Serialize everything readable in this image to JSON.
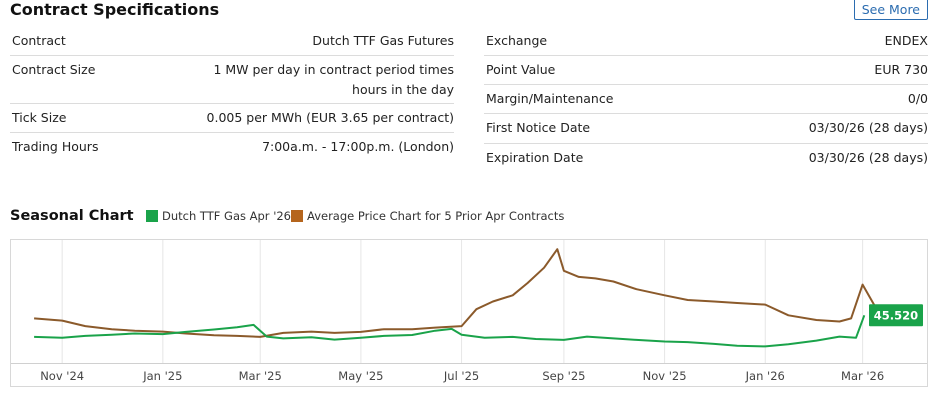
{
  "header": {
    "title": "Contract Specifications",
    "see_more_label": "See More"
  },
  "specs_left": [
    {
      "label": "Contract",
      "value": "Dutch TTF Gas Futures"
    },
    {
      "label": "Contract Size",
      "value": "1 MW per day in contract period times",
      "value2": "hours in the day"
    },
    {
      "label": "Tick Size",
      "value": "0.005 per MWh (EUR 3.65 per contract)"
    },
    {
      "label": "Trading Hours",
      "value": "7:00a.m. - 17:00p.m. (London)"
    }
  ],
  "specs_right": [
    {
      "label": "Exchange",
      "value": "ENDEX"
    },
    {
      "label": "Point Value",
      "value": "EUR 730"
    },
    {
      "label": "Margin/Maintenance",
      "value": "0/0"
    },
    {
      "label": "First Notice Date",
      "value": "03/30/26 (28 days)"
    },
    {
      "label": "Expiration Date",
      "value": "03/30/26 (28 days)"
    }
  ],
  "seasonal": {
    "title": "Seasonal Chart"
  },
  "chart_data": {
    "type": "line",
    "x_tick_labels": [
      "Nov '24",
      "Jan '25",
      "Mar '25",
      "May '25",
      "Jul '25",
      "Sep '25",
      "Nov '25",
      "Jan '26",
      "Mar '26"
    ],
    "y_axis_labels_shown": false,
    "grid": true,
    "legend_placement": "top-left",
    "last_value_label": "45.520",
    "series": [
      {
        "name": "Dutch TTF Gas Apr '26",
        "color": "#1aa34a",
        "x": [
          "2024-10-15",
          "2024-11-01",
          "2024-11-15",
          "2024-12-01",
          "2024-12-15",
          "2025-01-01",
          "2025-01-15",
          "2025-02-01",
          "2025-02-15",
          "2025-02-25",
          "2025-03-05",
          "2025-03-15",
          "2025-04-01",
          "2025-04-15",
          "2025-05-01",
          "2025-05-15",
          "2025-06-01",
          "2025-06-15",
          "2025-06-25",
          "2025-07-01",
          "2025-07-15",
          "2025-08-01",
          "2025-08-15",
          "2025-09-01",
          "2025-09-15",
          "2025-10-01",
          "2025-10-15",
          "2025-11-01",
          "2025-11-15",
          "2025-12-01",
          "2025-12-15",
          "2026-01-01",
          "2026-01-15",
          "2026-02-01",
          "2026-02-15",
          "2026-02-25",
          "2026-03-02"
        ],
        "y": [
          38.5,
          38.2,
          38.8,
          39.2,
          39.6,
          39.4,
          40.1,
          40.9,
          41.6,
          42.4,
          38.6,
          38.0,
          38.4,
          37.6,
          38.2,
          38.8,
          39.1,
          40.5,
          41.1,
          39.2,
          38.2,
          38.5,
          37.8,
          37.5,
          38.6,
          38.0,
          37.5,
          37.0,
          36.8,
          36.2,
          35.6,
          35.4,
          36.1,
          37.3,
          38.6,
          38.2,
          45.52
        ]
      },
      {
        "name": "Average Price Chart for 5 Prior Apr Contracts",
        "color": "#8b5a2b",
        "x": [
          "2024-10-15",
          "2024-11-01",
          "2024-11-15",
          "2024-12-01",
          "2024-12-15",
          "2025-01-01",
          "2025-01-15",
          "2025-02-01",
          "2025-02-15",
          "2025-03-01",
          "2025-03-15",
          "2025-04-01",
          "2025-04-15",
          "2025-05-01",
          "2025-05-15",
          "2025-06-01",
          "2025-06-15",
          "2025-07-01",
          "2025-07-10",
          "2025-07-20",
          "2025-08-01",
          "2025-08-10",
          "2025-08-20",
          "2025-08-28",
          "2025-09-01",
          "2025-09-10",
          "2025-09-20",
          "2025-10-01",
          "2025-10-15",
          "2025-11-01",
          "2025-11-15",
          "2025-12-01",
          "2025-12-15",
          "2026-01-01",
          "2026-01-15",
          "2026-02-01",
          "2026-02-15",
          "2026-02-22",
          "2026-03-01",
          "2026-03-10",
          "2026-03-20",
          "2026-03-28"
        ],
        "y": [
          44.5,
          43.8,
          42.0,
          41.0,
          40.5,
          40.2,
          39.6,
          39.0,
          38.8,
          38.5,
          39.8,
          40.2,
          39.8,
          40.1,
          41.0,
          41.0,
          41.5,
          42.0,
          47.5,
          50.0,
          52.0,
          56.0,
          61.0,
          67.0,
          60.0,
          58.0,
          57.5,
          56.5,
          54.0,
          52.0,
          50.5,
          50.0,
          49.5,
          49.0,
          45.5,
          44.0,
          43.5,
          44.5,
          55.5,
          47.0,
          44.5,
          44.0
        ]
      }
    ]
  }
}
